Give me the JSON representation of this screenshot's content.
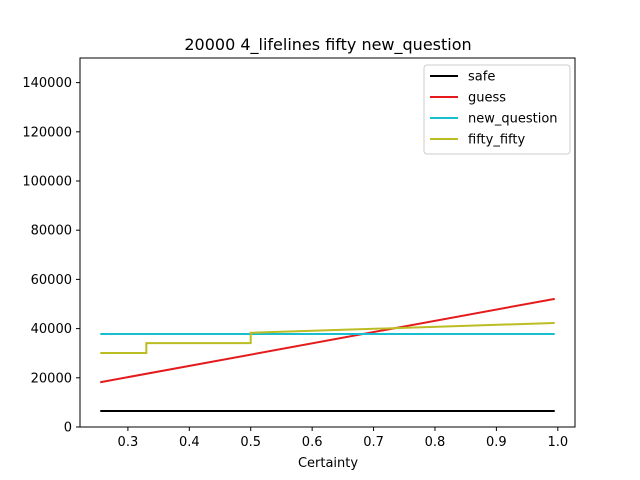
{
  "chart_data": {
    "type": "line",
    "title": "20000 4_lifelines fifty new_question",
    "xlabel": "Certainty",
    "ylabel": "",
    "xlim": [
      0.222,
      1.028
    ],
    "ylim": [
      0,
      150000
    ],
    "xticks": [
      0.3,
      0.4,
      0.5,
      0.6,
      0.7,
      0.8,
      0.9,
      1.0
    ],
    "xtick_labels": [
      "0.3",
      "0.4",
      "0.5",
      "0.6",
      "0.7",
      "0.8",
      "0.9",
      "1.0"
    ],
    "yticks": [
      0,
      20000,
      40000,
      60000,
      80000,
      100000,
      120000,
      140000
    ],
    "ytick_labels": [
      "0",
      "20000",
      "40000",
      "60000",
      "80000",
      "100000",
      "120000",
      "140000"
    ],
    "grid": false,
    "legend": "top-right",
    "series": [
      {
        "name": "safe",
        "color": "#000000",
        "x": [
          0.255,
          0.995
        ],
        "y": [
          6500,
          6500
        ]
      },
      {
        "name": "guess",
        "color": "#e41a1c",
        "x": [
          0.255,
          0.995
        ],
        "y": [
          18200,
          52100
        ]
      },
      {
        "name": "new_question",
        "color": "#17becf",
        "x": [
          0.255,
          0.995
        ],
        "y": [
          37800,
          37800
        ]
      },
      {
        "name": "fifty_fifty",
        "color": "#bcbd22",
        "x": [
          0.255,
          0.33,
          0.33,
          0.5,
          0.5,
          0.995
        ],
        "y": [
          30100,
          30100,
          34100,
          34100,
          38300,
          42300
        ]
      }
    ]
  }
}
